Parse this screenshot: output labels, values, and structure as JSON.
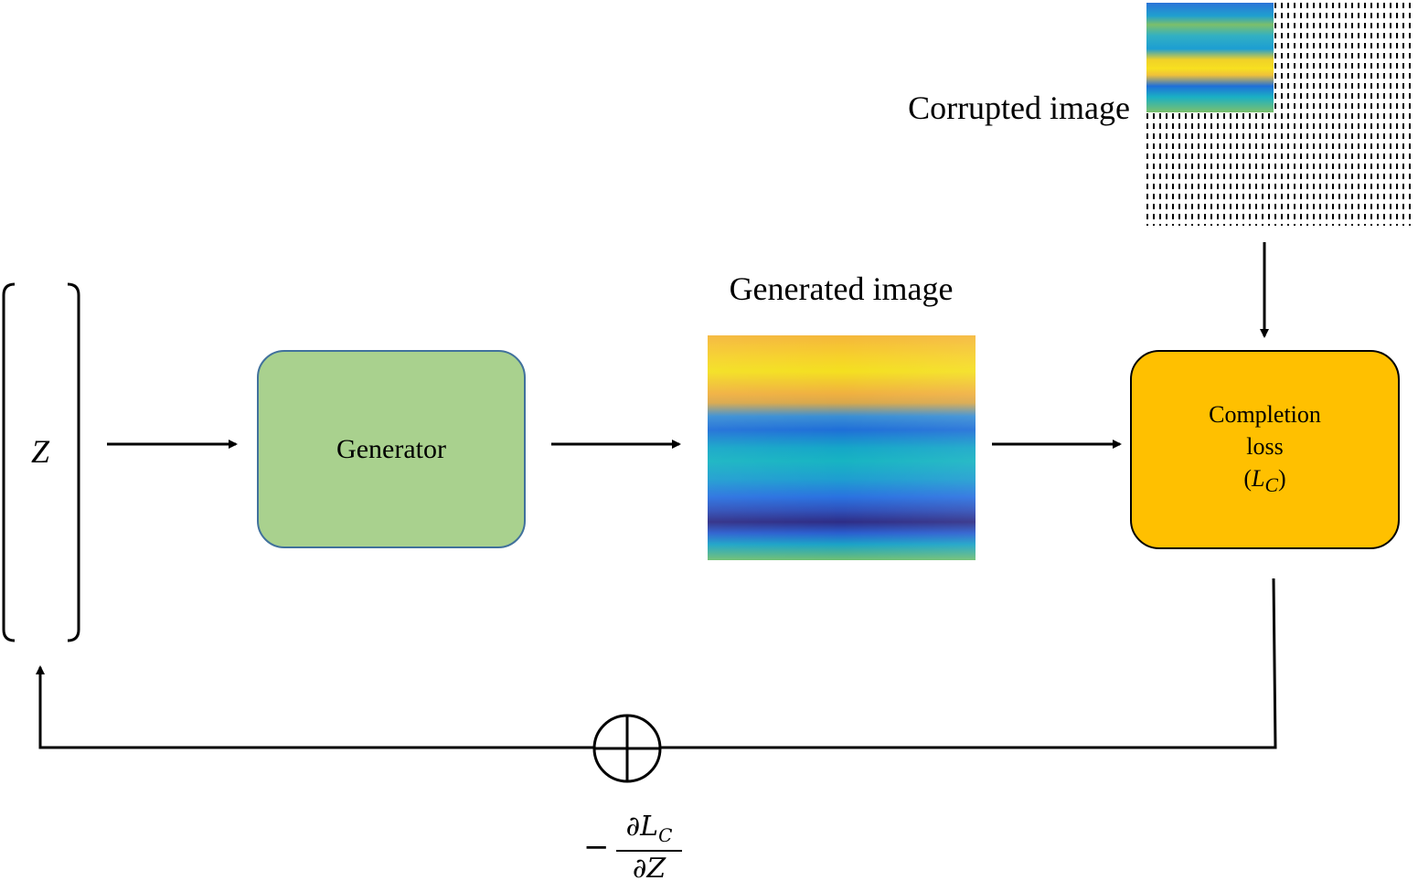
{
  "z_label": "Z",
  "generator": {
    "label": "Generator"
  },
  "generated_image": {
    "title": "Generated image"
  },
  "corrupted_image": {
    "title": "Corrupted image"
  },
  "completion_loss": {
    "line1": "Completion",
    "line2": "loss",
    "symbol_open": "(",
    "symbol_main": "L",
    "symbol_sub": "C",
    "symbol_close": ")"
  },
  "gradient": {
    "minus": "−",
    "numerator_main": "∂L",
    "numerator_sub": "C",
    "denominator": "∂Z"
  },
  "colors": {
    "generator_fill": "#a9d18e",
    "generator_border": "#41719c",
    "loss_fill": "#ffc000"
  }
}
